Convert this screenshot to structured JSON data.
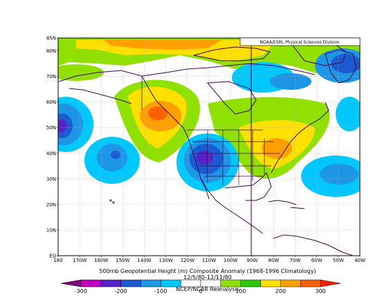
{
  "credit": "NOAA/ESRL Physical Sciences Division",
  "title": "500mb Geopotential Height (m) Composite Anomaly (1968-1996 Climatology)",
  "dates": "12/5/80-12/11/80",
  "source": "NCEP/NCAR Reanalysis",
  "lat_labels": [
    "85N",
    "80N",
    "70N",
    "60N",
    "50N",
    "40N",
    "30N",
    "20N",
    "10N",
    "EQ"
  ],
  "lon_labels": [
    "180",
    "170W",
    "160W",
    "150W",
    "140W",
    "130W",
    "120W",
    "110W",
    "100W",
    "90W",
    "80W",
    "70W",
    "60W",
    "50W",
    "40W"
  ],
  "colorbar": {
    "labels": [
      "-300",
      "-200",
      "-100",
      "0",
      "100",
      "200",
      "300"
    ],
    "colors": [
      "#800080",
      "#c000c0",
      "#5a20c8",
      "#1c5ad2",
      "#1e96e6",
      "#00c8ff",
      "#ffffff",
      "#ffffff",
      "#90e000",
      "#30c800",
      "#ffe000",
      "#ffa000",
      "#ff6000",
      "#ff2000"
    ]
  },
  "colors": {
    "land_outline": "#3c0050",
    "grid": "#b0b0b0"
  }
}
